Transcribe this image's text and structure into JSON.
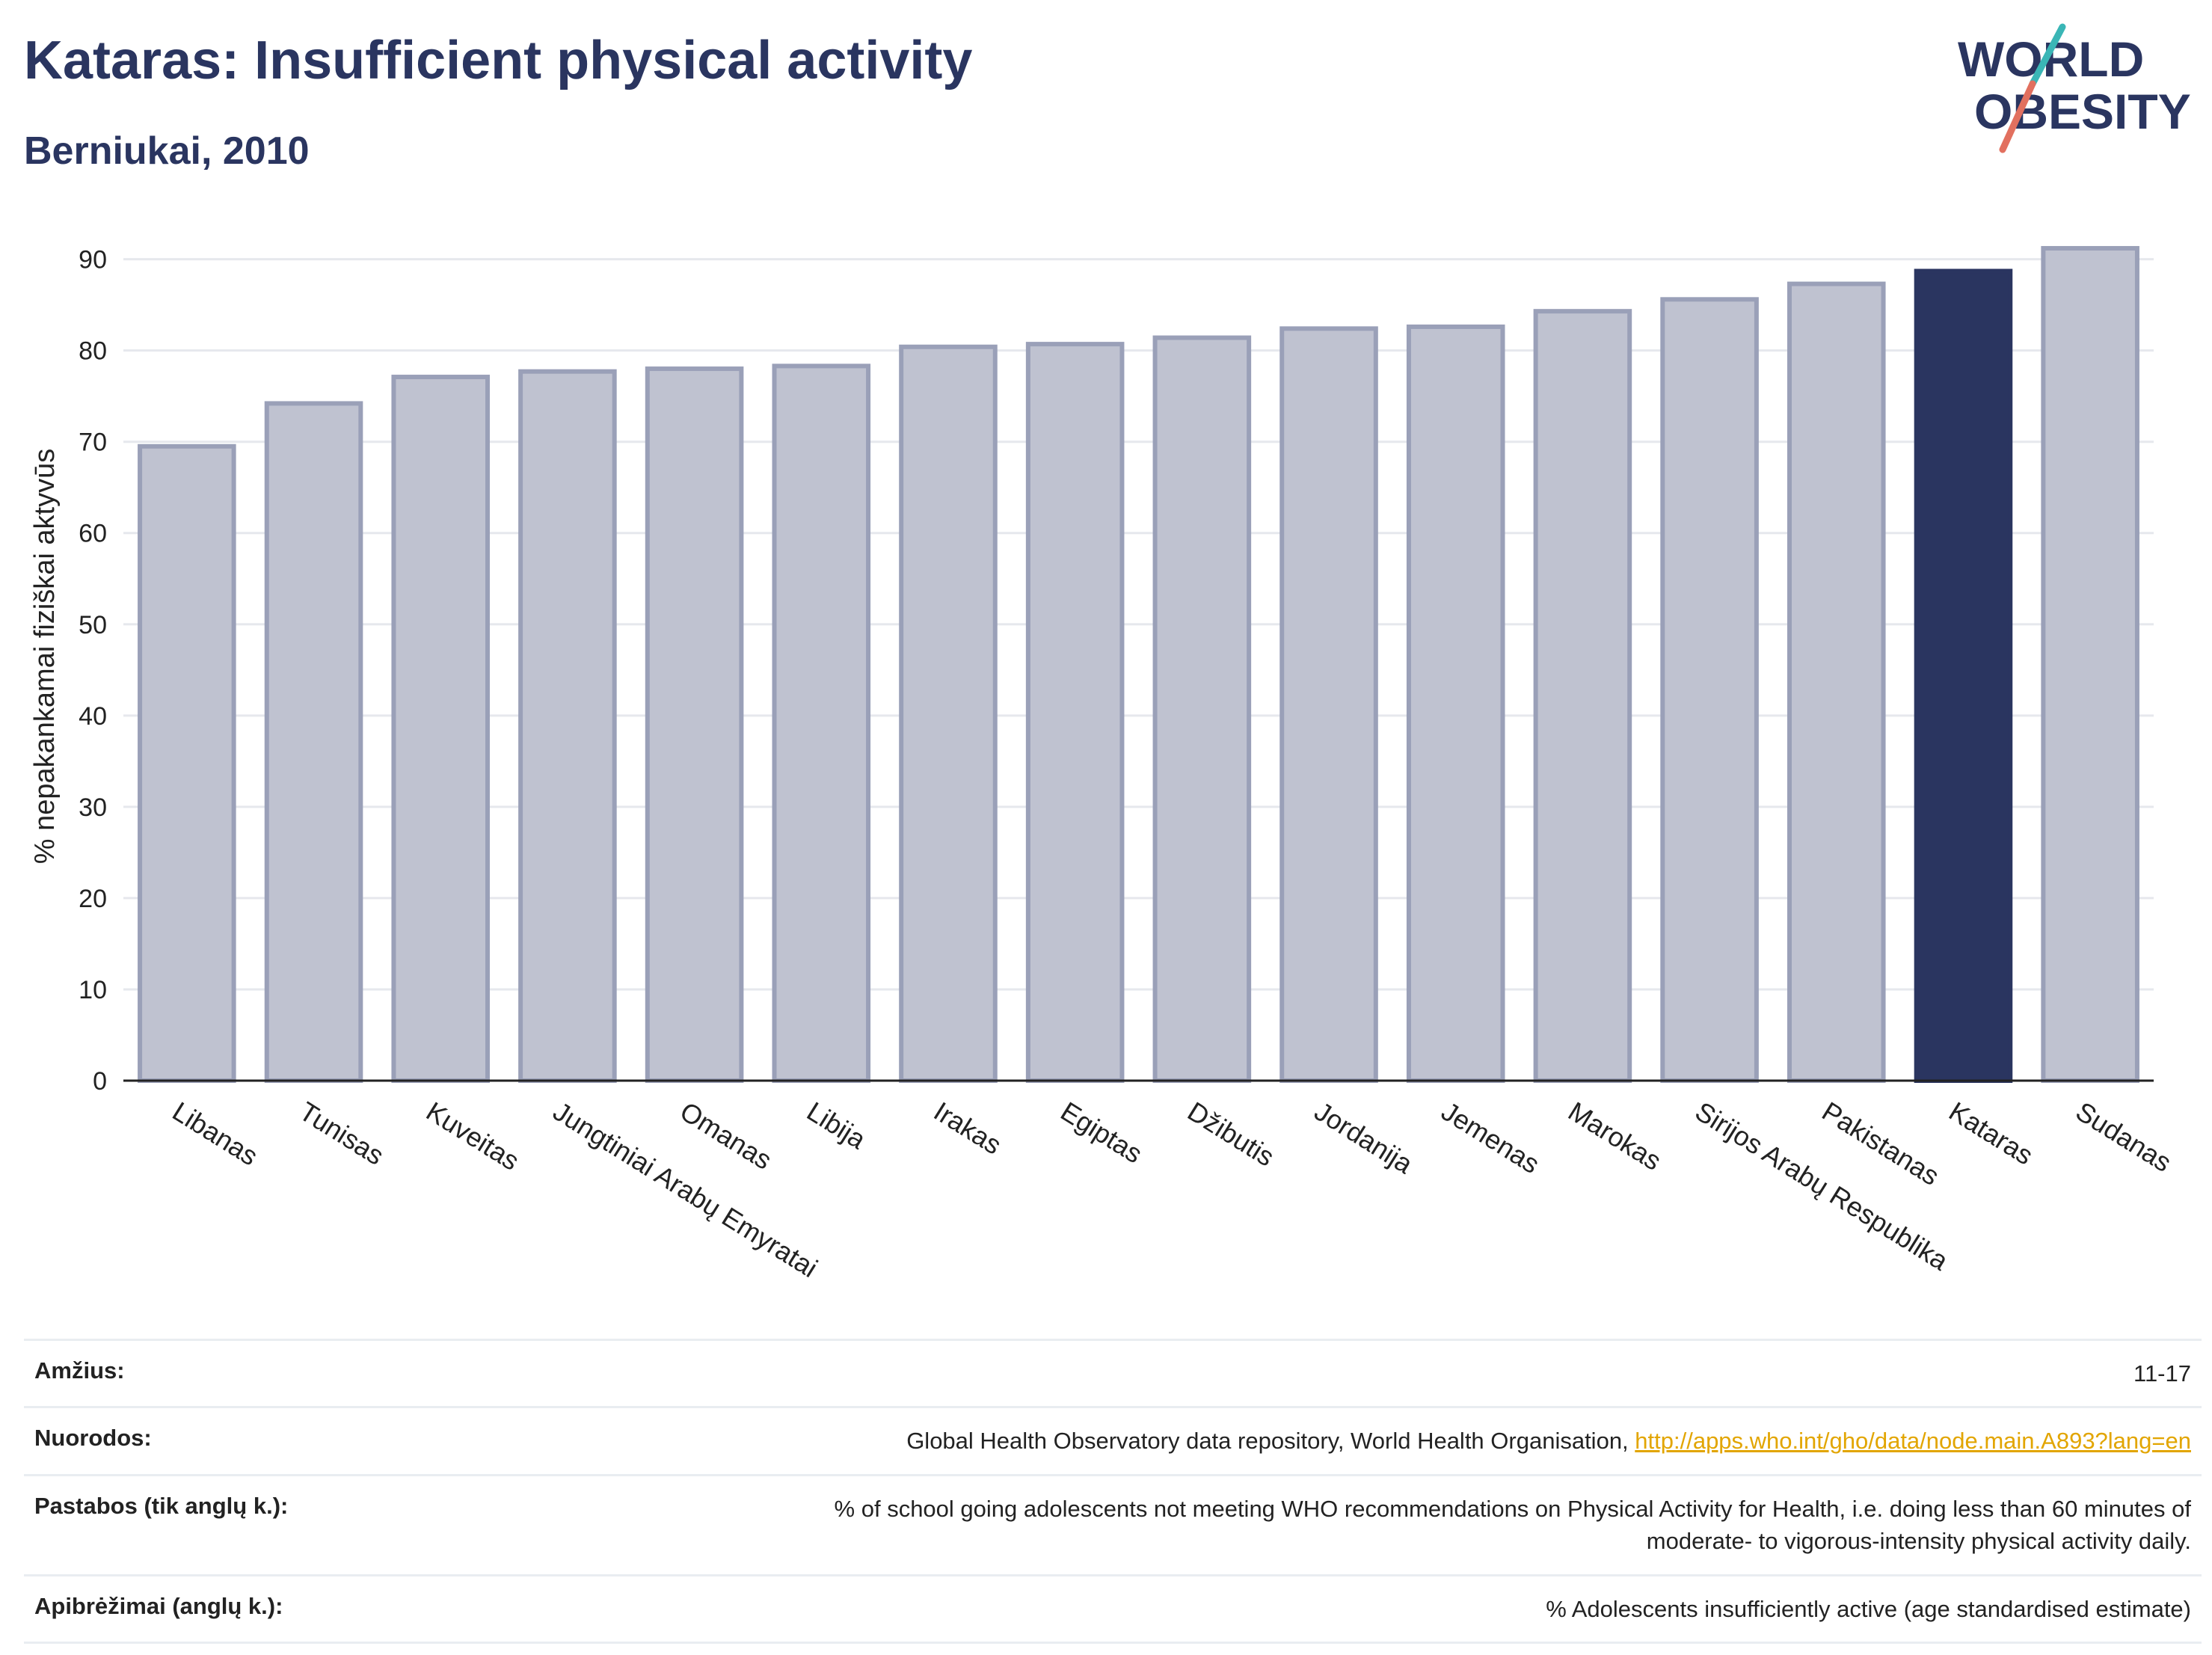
{
  "title": "Kataras: Insufficient physical activity",
  "subtitle": "Berniukai, 2010",
  "logo": {
    "line1": "WORLD",
    "line2": "OBESITY"
  },
  "colors": {
    "bar": "#bfc2d0",
    "bar_stroke": "#9aa0b8",
    "highlight": "#2a3560",
    "grid": "#e6e8ed",
    "text": "#2a3560"
  },
  "chart_data": {
    "type": "bar",
    "categories": [
      "Libanas",
      "Tunisas",
      "Kuveitas",
      "Jungtiniai Arabų Emyratai",
      "Omanas",
      "Libija",
      "Irakas",
      "Egiptas",
      "Džibutis",
      "Jordanija",
      "Jemenas",
      "Marokas",
      "Sirijos Arabų Respublika",
      "Pakistanas",
      "Kataras",
      "Sudanas"
    ],
    "values": [
      69.5,
      74.2,
      77.1,
      77.7,
      78.0,
      78.3,
      80.4,
      80.7,
      81.4,
      82.4,
      82.6,
      84.3,
      85.6,
      87.3,
      88.7,
      91.2
    ],
    "highlight": "Kataras",
    "ylabel": "% nepakankamai fiziškai aktyvūs",
    "xlabel": "",
    "ylim": [
      0,
      93
    ],
    "yticks": [
      0,
      10,
      20,
      30,
      40,
      50,
      60,
      70,
      80,
      90
    ],
    "grid": true
  },
  "footer": {
    "age_label": "Amžius:",
    "age_value": "11-17",
    "refs_label": "Nuorodos:",
    "refs_text": "Global Health Observatory data repository, World Health Organisation, ",
    "refs_link": "http://apps.who.int/gho/data/node.main.A893?lang=en",
    "notes_label": "Pastabos (tik anglų k.):",
    "notes_line1": "% of school going adolescents not meeting WHO recommendations on Physical Activity for Health, i.e. doing less than 60 minutes of",
    "notes_line2": "moderate- to vigorous-intensity physical activity daily.",
    "defs_label": "Apibrėžimai (anglų k.):",
    "defs_value": "% Adolescents insufficiently active (age standardised estimate)"
  }
}
